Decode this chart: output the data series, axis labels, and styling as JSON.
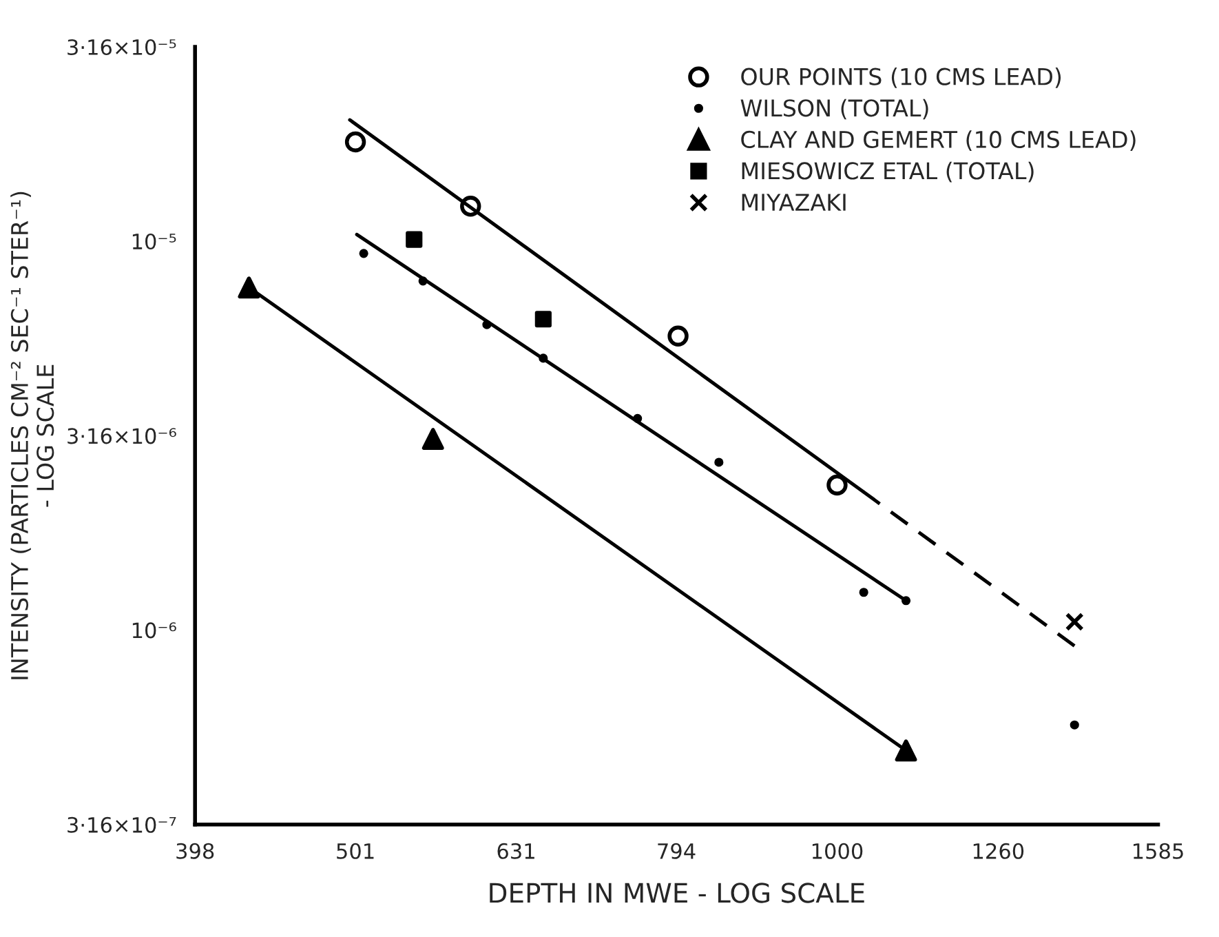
{
  "chart_data": {
    "type": "scatter",
    "xlabel": "DEPTH IN MWE - LOG SCALE",
    "ylabel": "INTENSITY (PARTICLES CM⁻² SEC⁻¹ STER⁻¹)\n- LOG SCALE",
    "log": "xy",
    "grid": false,
    "legend": "top right",
    "xlim": [
      398,
      1585
    ],
    "xticks": [
      398,
      501,
      631,
      794,
      1000,
      1260,
      1585
    ],
    "ylim": [
      3.16e-07,
      3.16e-05
    ],
    "yticks": [
      {
        "value": 3.16e-07,
        "label": "3·16×10⁻⁷"
      },
      {
        "value": 1e-06,
        "label": "10⁻⁶"
      },
      {
        "value": 3.16e-06,
        "label": "3·16×10⁻⁶"
      },
      {
        "value": 1e-05,
        "label": "10⁻⁵"
      },
      {
        "value": 3.16e-05,
        "label": "3·16×10⁻⁵"
      }
    ],
    "series": [
      {
        "name": "OUR POINTS (10 CMS LEAD)",
        "color": "#000000",
        "marker": "circle",
        "x": [
          501,
          591,
          796,
          1000
        ],
        "values": [
          1.8e-05,
          1.23e-05,
          5.7e-06,
          2.36e-06
        ]
      },
      {
        "name": "WILSON (TOTAL)",
        "color": "#000000",
        "marker": "point",
        "x": [
          507,
          552,
          605,
          656,
          751,
          844,
          1039,
          1104,
          1406
        ],
        "values": [
          9.3e-06,
          7.9e-06,
          6.1e-06,
          5e-06,
          3.5e-06,
          2.7e-06,
          1.25e-06,
          1.19e-06,
          5.7e-07
        ]
      },
      {
        "name": "CLAY AND GEMERT (10 CMS LEAD)",
        "color": "#000000",
        "marker": "triangle",
        "x": [
          430,
          560,
          1104
        ],
        "values": [
          7.6e-06,
          3.1e-06,
          4.9e-07
        ]
      },
      {
        "name": "MIESOWICZ ETAL (TOTAL)",
        "color": "#000000",
        "marker": "square",
        "x": [
          545,
          656
        ],
        "values": [
          1.01e-05,
          6.3e-06
        ]
      },
      {
        "name": "MIYAZAKI",
        "color": "#000000",
        "marker": "cross",
        "x": [
          1406
        ],
        "values": [
          1.05e-06
        ]
      },
      {
        "type": "line",
        "color": "#000000",
        "line_style": "solid",
        "x": [
          497,
          1038
        ],
        "values": [
          2.05e-05,
          2.27e-06
        ]
      },
      {
        "type": "line",
        "color": "#000000",
        "line_style": "dashed",
        "x": [
          1038,
          1406
        ],
        "values": [
          2.27e-06,
          9.1e-07
        ]
      },
      {
        "type": "line",
        "color": "#000000",
        "line_style": "solid",
        "x": [
          502,
          1104
        ],
        "values": [
          1.04e-05,
          1.19e-06
        ]
      },
      {
        "type": "line",
        "color": "#000000",
        "line_style": "solid",
        "x": [
          430,
          1104
        ],
        "values": [
          7.6e-06,
          4.9e-07
        ]
      }
    ]
  }
}
